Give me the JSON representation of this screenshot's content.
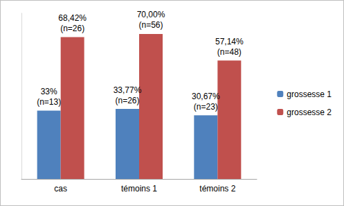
{
  "chart_data": {
    "type": "bar",
    "categories": [
      "cas",
      "témoins 1",
      "témoins 2"
    ],
    "series": [
      {
        "name": "grossesse 1",
        "color": "#4f81bd",
        "values": [
          33,
          33.77,
          30.67
        ],
        "value_labels": [
          "33%\n(n=13)",
          "33,77%\n(n=26)",
          "30,67%\n(n=23)"
        ]
      },
      {
        "name": "grossesse 2",
        "color": "#c0504d",
        "values": [
          68.42,
          70.0,
          57.14
        ],
        "value_labels": [
          "68,42%\n(n=26)",
          "70,00%\n(n=56)",
          "57,14%\n(n=48)"
        ]
      }
    ],
    "ylim": [
      0,
      80
    ],
    "grid": false,
    "legend": "right",
    "data_labels": true,
    "tick_labels": "x"
  }
}
